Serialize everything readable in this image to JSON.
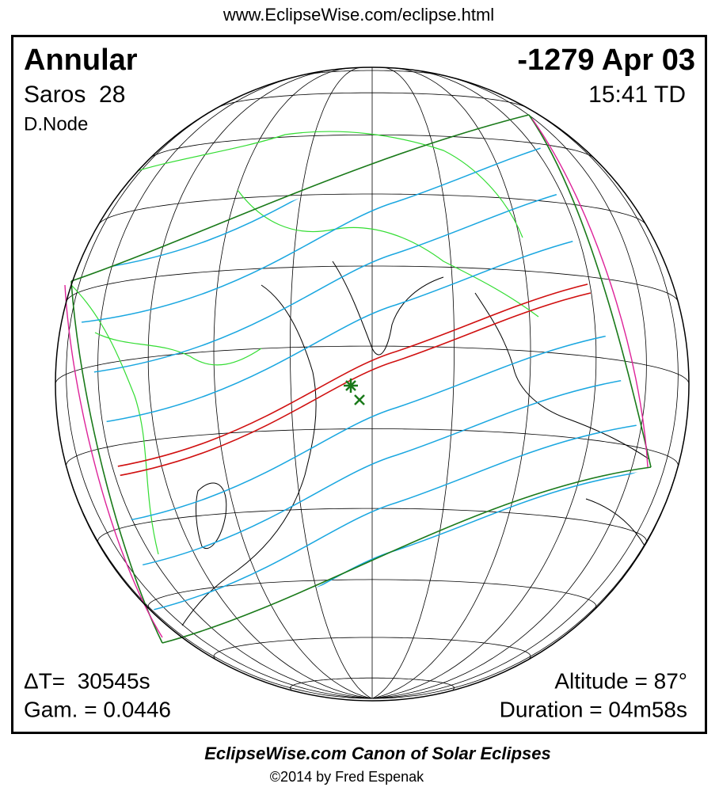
{
  "header": {
    "url": "www.EclipseWise.com/eclipse.html"
  },
  "eclipse": {
    "type": "Annular",
    "saros": "Saros  28",
    "node": "D.Node",
    "date": "-1279 Apr 03",
    "time": "15:41 TD",
    "delta_t": "ΔT=  30545s",
    "gamma": "Gam. = 0.0446",
    "altitude": "Altitude = 87°",
    "duration": "Duration = 04m58s"
  },
  "footer": {
    "title": "EclipseWise.com Canon of Solar Eclipses",
    "copyright": "©2014 by Fred Espenak"
  }
}
